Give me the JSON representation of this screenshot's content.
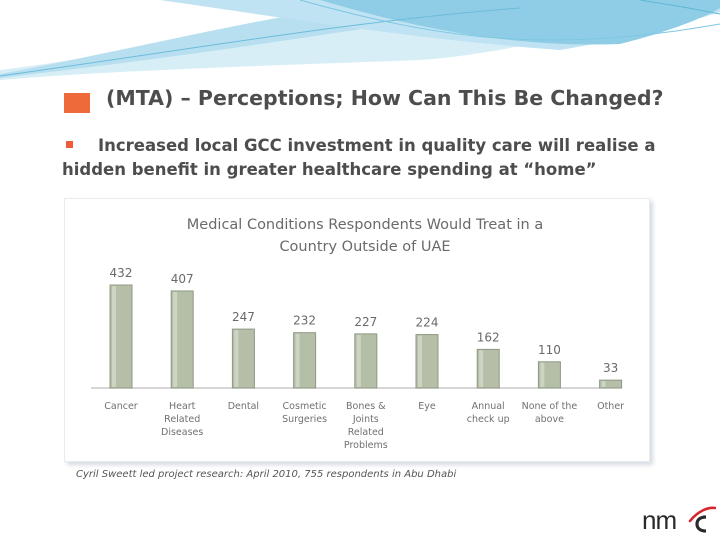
{
  "slide": {
    "title": "(MTA) – Perceptions; How Can This Be Changed?",
    "bullet": "Increased local GCC investment in quality care will realise a hidden benefit in greater healthcare spending at “home”",
    "source": "Cyril Sweett led project research: April 2010, 755 respondents in Abu Dhabi",
    "logo_text": "nmc"
  },
  "colors": {
    "bar_fill": "#b5bfa8",
    "bar_edge": "#8e9883",
    "title_bullet": "#ee6a3a",
    "axis": "#bfbfbf",
    "label": "#707070"
  },
  "chart_data": {
    "type": "bar",
    "title_lines": [
      "Medical Conditions Respondents Would Treat in a",
      "Country Outside of UAE"
    ],
    "categories": [
      [
        "Cancer"
      ],
      [
        "Heart",
        "Related",
        "Diseases"
      ],
      [
        "Dental"
      ],
      [
        "Cosmetic",
        "Surgeries"
      ],
      [
        "Bones &",
        "Joints",
        "Related",
        "Problems"
      ],
      [
        "Eye"
      ],
      [
        "Annual",
        "check up"
      ],
      [
        "None of the",
        "above"
      ],
      [
        "Other"
      ]
    ],
    "values": [
      432,
      407,
      247,
      232,
      227,
      224,
      162,
      110,
      33
    ],
    "ylim": [
      0,
      432
    ],
    "xlabel": "",
    "ylabel": "",
    "legend": false
  }
}
